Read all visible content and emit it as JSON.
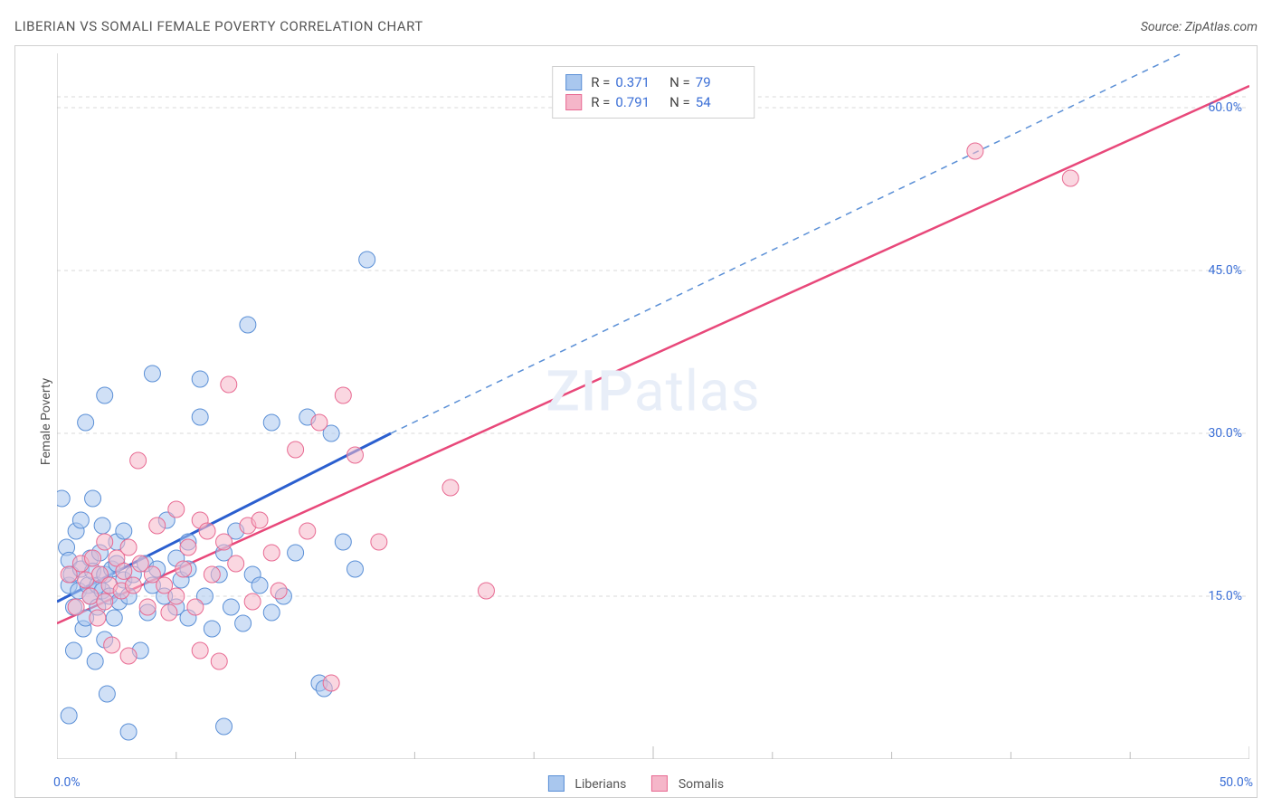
{
  "title": "LIBERIAN VS SOMALI FEMALE POVERTY CORRELATION CHART",
  "source": "Source: ZipAtlas.com",
  "ylabel": "Female Poverty",
  "watermark_a": "ZIP",
  "watermark_b": "atlas",
  "chart": {
    "type": "scatter",
    "xlim": [
      0,
      50
    ],
    "ylim": [
      0,
      65
    ],
    "xticks": [
      0,
      5,
      10,
      15,
      20,
      25,
      30,
      35,
      40,
      45,
      50
    ],
    "xticks_major": [
      25,
      50
    ],
    "yticks": [
      15,
      30,
      45,
      60
    ],
    "x_lab_left": "0.0%",
    "x_lab_right": "50.0%",
    "ytick_labels": [
      "15.0%",
      "30.0%",
      "45.0%",
      "60.0%"
    ],
    "background_color": "#ffffff",
    "grid_dash_color": "#d9d9d9",
    "axis_color": "#bdbdbd",
    "series": [
      {
        "name": "Liberians",
        "fill": "#a9c7ee",
        "stroke": "#5a8fd6",
        "fill_opacity": 0.55,
        "marker_r": 9,
        "r_value": "0.371",
        "n_value": "79",
        "trend": {
          "x1": 0,
          "y1": 14.5,
          "x2": 14,
          "y2": 30,
          "x3": 50,
          "y3": 68,
          "solid_color": "#2b5fcf",
          "dash_color": "#5a8fd6"
        },
        "points": [
          [
            0.2,
            24.0
          ],
          [
            0.4,
            19.5
          ],
          [
            0.5,
            16.0
          ],
          [
            0.5,
            18.3
          ],
          [
            0.6,
            17.0
          ],
          [
            0.7,
            10.0
          ],
          [
            0.7,
            14.0
          ],
          [
            0.8,
            21.0
          ],
          [
            0.9,
            15.5
          ],
          [
            1.0,
            17.5
          ],
          [
            1.0,
            22.0
          ],
          [
            1.1,
            12.0
          ],
          [
            1.2,
            31.0
          ],
          [
            1.2,
            13.0
          ],
          [
            1.3,
            16.0
          ],
          [
            1.4,
            15.0
          ],
          [
            1.4,
            18.5
          ],
          [
            1.5,
            17.3
          ],
          [
            1.5,
            24.0
          ],
          [
            1.6,
            9.0
          ],
          [
            1.7,
            16.0
          ],
          [
            1.7,
            14.0
          ],
          [
            1.8,
            19.0
          ],
          [
            1.9,
            21.5
          ],
          [
            1.9,
            15.5
          ],
          [
            2.0,
            17.0
          ],
          [
            2.0,
            11.0
          ],
          [
            2.0,
            33.5
          ],
          [
            2.1,
            6.0
          ],
          [
            2.2,
            15.0
          ],
          [
            2.3,
            17.5
          ],
          [
            2.4,
            13.0
          ],
          [
            2.5,
            18.0
          ],
          [
            2.5,
            20.0
          ],
          [
            2.6,
            14.5
          ],
          [
            2.8,
            16.5
          ],
          [
            2.8,
            21.0
          ],
          [
            3.0,
            15.0
          ],
          [
            3.0,
            2.5
          ],
          [
            3.2,
            17.0
          ],
          [
            3.5,
            10.0
          ],
          [
            3.7,
            18.0
          ],
          [
            3.8,
            13.5
          ],
          [
            4.0,
            16.0
          ],
          [
            4.0,
            35.5
          ],
          [
            4.2,
            17.5
          ],
          [
            4.5,
            15.0
          ],
          [
            4.6,
            22.0
          ],
          [
            5.0,
            18.5
          ],
          [
            5.0,
            14.0
          ],
          [
            5.2,
            16.5
          ],
          [
            5.5,
            20.0
          ],
          [
            5.5,
            13.0
          ],
          [
            6.0,
            35.0
          ],
          [
            6.0,
            31.5
          ],
          [
            6.2,
            15.0
          ],
          [
            6.5,
            12.0
          ],
          [
            6.8,
            17.0
          ],
          [
            7.0,
            3.0
          ],
          [
            7.0,
            19.0
          ],
          [
            7.3,
            14.0
          ],
          [
            7.5,
            21.0
          ],
          [
            7.8,
            12.5
          ],
          [
            8.0,
            40.0
          ],
          [
            8.2,
            17.0
          ],
          [
            8.5,
            16.0
          ],
          [
            9.0,
            13.5
          ],
          [
            9.0,
            31.0
          ],
          [
            9.5,
            15.0
          ],
          [
            10.0,
            19.0
          ],
          [
            10.5,
            31.5
          ],
          [
            11.0,
            7.0
          ],
          [
            11.2,
            6.5
          ],
          [
            11.5,
            30.0
          ],
          [
            12.0,
            20.0
          ],
          [
            12.5,
            17.5
          ],
          [
            13.0,
            46.0
          ],
          [
            0.5,
            4.0
          ],
          [
            5.5,
            17.5
          ]
        ]
      },
      {
        "name": "Somalis",
        "fill": "#f5b6c9",
        "stroke": "#e86a92",
        "fill_opacity": 0.55,
        "marker_r": 9,
        "r_value": "0.791",
        "n_value": "54",
        "trend": {
          "x1": 0,
          "y1": 12.5,
          "x2": 50,
          "y2": 62,
          "solid_color": "#e8487a",
          "dash_color": "#e8487a"
        },
        "points": [
          [
            0.5,
            17.0
          ],
          [
            0.8,
            14.0
          ],
          [
            1.0,
            18.0
          ],
          [
            1.2,
            16.5
          ],
          [
            1.4,
            15.0
          ],
          [
            1.5,
            18.5
          ],
          [
            1.7,
            13.0
          ],
          [
            1.8,
            17.0
          ],
          [
            2.0,
            20.0
          ],
          [
            2.0,
            14.5
          ],
          [
            2.2,
            16.0
          ],
          [
            2.3,
            10.5
          ],
          [
            2.5,
            18.5
          ],
          [
            2.7,
            15.5
          ],
          [
            2.8,
            17.3
          ],
          [
            3.0,
            9.5
          ],
          [
            3.0,
            19.5
          ],
          [
            3.2,
            16.0
          ],
          [
            3.4,
            27.5
          ],
          [
            3.5,
            18.0
          ],
          [
            3.8,
            14.0
          ],
          [
            4.0,
            17.0
          ],
          [
            4.2,
            21.5
          ],
          [
            4.5,
            16.0
          ],
          [
            4.7,
            13.5
          ],
          [
            5.0,
            23.0
          ],
          [
            5.0,
            15.0
          ],
          [
            5.3,
            17.5
          ],
          [
            5.5,
            19.5
          ],
          [
            5.8,
            14.0
          ],
          [
            6.0,
            22.0
          ],
          [
            6.0,
            10.0
          ],
          [
            6.3,
            21.0
          ],
          [
            6.5,
            17.0
          ],
          [
            6.8,
            9.0
          ],
          [
            7.0,
            20.0
          ],
          [
            7.2,
            34.5
          ],
          [
            7.5,
            18.0
          ],
          [
            8.0,
            21.5
          ],
          [
            8.2,
            14.5
          ],
          [
            8.5,
            22.0
          ],
          [
            9.0,
            19.0
          ],
          [
            9.3,
            15.5
          ],
          [
            10.0,
            28.5
          ],
          [
            10.5,
            21.0
          ],
          [
            11.0,
            31.0
          ],
          [
            11.5,
            7.0
          ],
          [
            12.0,
            33.5
          ],
          [
            12.5,
            28.0
          ],
          [
            13.5,
            20.0
          ],
          [
            16.5,
            25.0
          ],
          [
            18.0,
            15.5
          ],
          [
            38.5,
            56.0
          ],
          [
            42.5,
            53.5
          ]
        ]
      }
    ]
  },
  "legend": {
    "item1_label": "Liberians",
    "item2_label": "Somalis"
  }
}
